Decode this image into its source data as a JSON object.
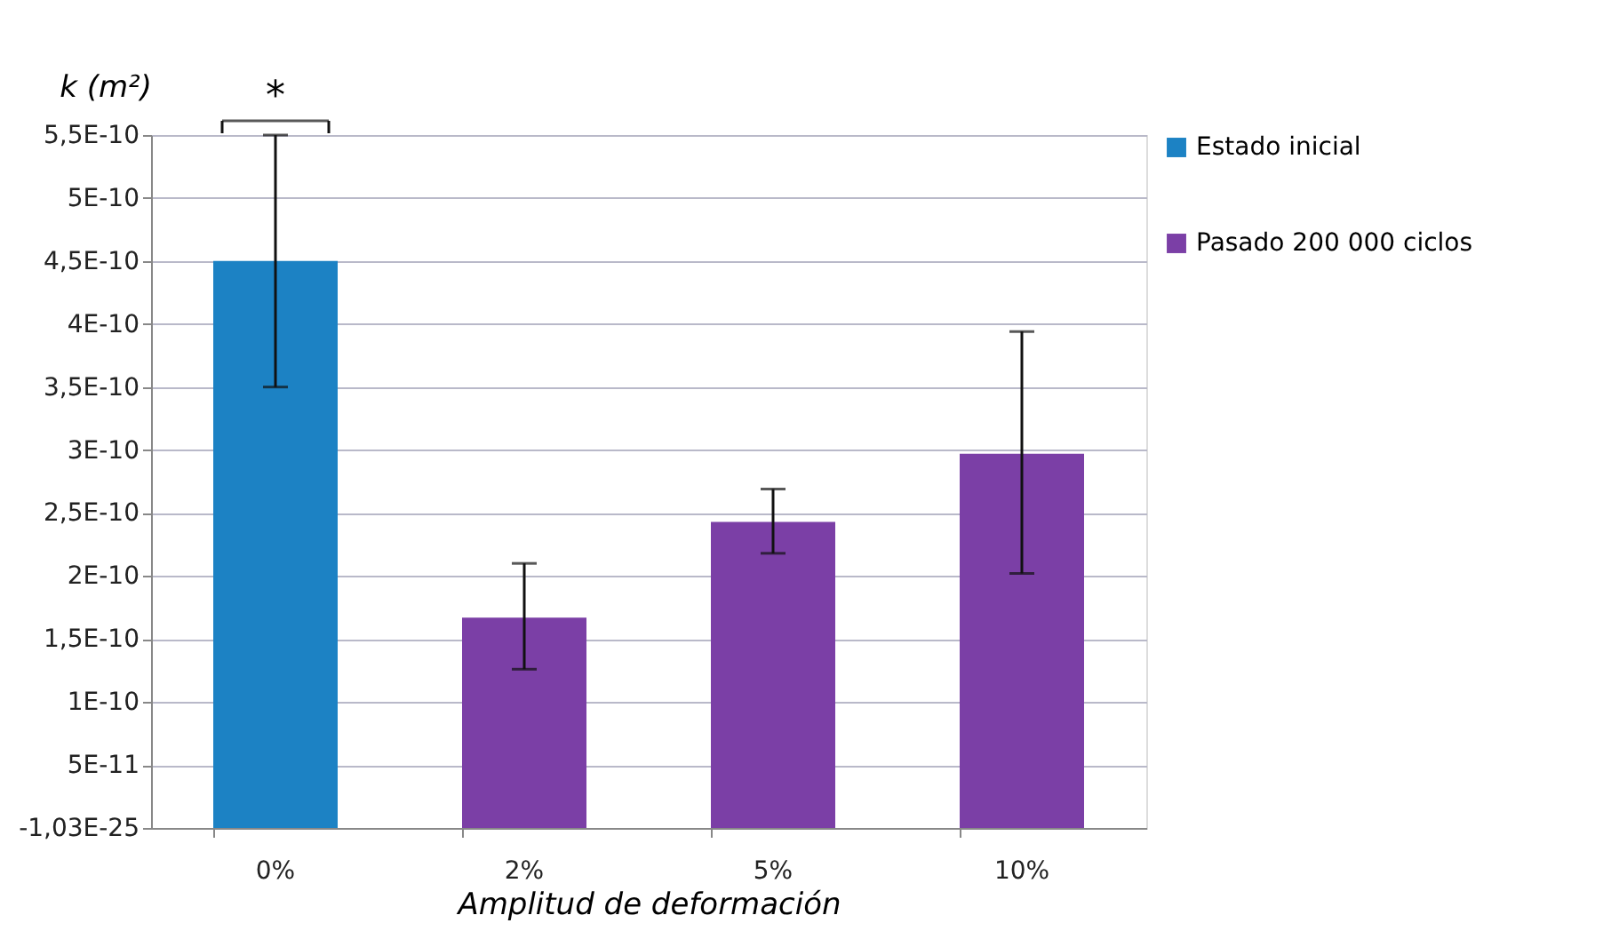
{
  "chart_data": {
    "type": "bar",
    "ylabel": "k (m²)",
    "xlabel": "Amplitud de deformación",
    "categories": [
      "0%",
      "2%",
      "5%",
      "10%"
    ],
    "series": [
      {
        "name": "Estado inicial",
        "color": "#1c82c4",
        "values": [
          4.5e-10,
          null,
          null,
          null
        ],
        "errors": [
          1e-10,
          null,
          null,
          null
        ]
      },
      {
        "name": "Pasado 200 000 ciclos",
        "color": "#7b3fa6",
        "values": [
          null,
          1.67e-10,
          2.43e-10,
          2.97e-10
        ],
        "errors": [
          null,
          [
            1.26e-10,
            2.1e-10
          ],
          [
            2.18e-10,
            2.69e-10
          ],
          [
            2.02e-10,
            3.94e-10
          ]
        ]
      }
    ],
    "ylim": [
      -1.03e-25,
      5.5e-10
    ],
    "yticks": [
      {
        "value": -1.03e-25,
        "label": "-1,03E-25"
      },
      {
        "value": 5e-11,
        "label": "5E-11"
      },
      {
        "value": 1e-10,
        "label": "1E-10"
      },
      {
        "value": 1.5e-10,
        "label": "1,5E-10"
      },
      {
        "value": 2e-10,
        "label": "2E-10"
      },
      {
        "value": 2.5e-10,
        "label": "2,5E-10"
      },
      {
        "value": 3e-10,
        "label": "3E-10"
      },
      {
        "value": 3.5e-10,
        "label": "3,5E-10"
      },
      {
        "value": 4e-10,
        "label": "4E-10"
      },
      {
        "value": 4.5e-10,
        "label": "4,5E-10"
      },
      {
        "value": 5e-10,
        "label": "5E-10"
      },
      {
        "value": 5.5e-10,
        "label": "5,5E-10"
      }
    ],
    "grid": "y",
    "legend": "right",
    "annotations": [
      "*"
    ]
  }
}
